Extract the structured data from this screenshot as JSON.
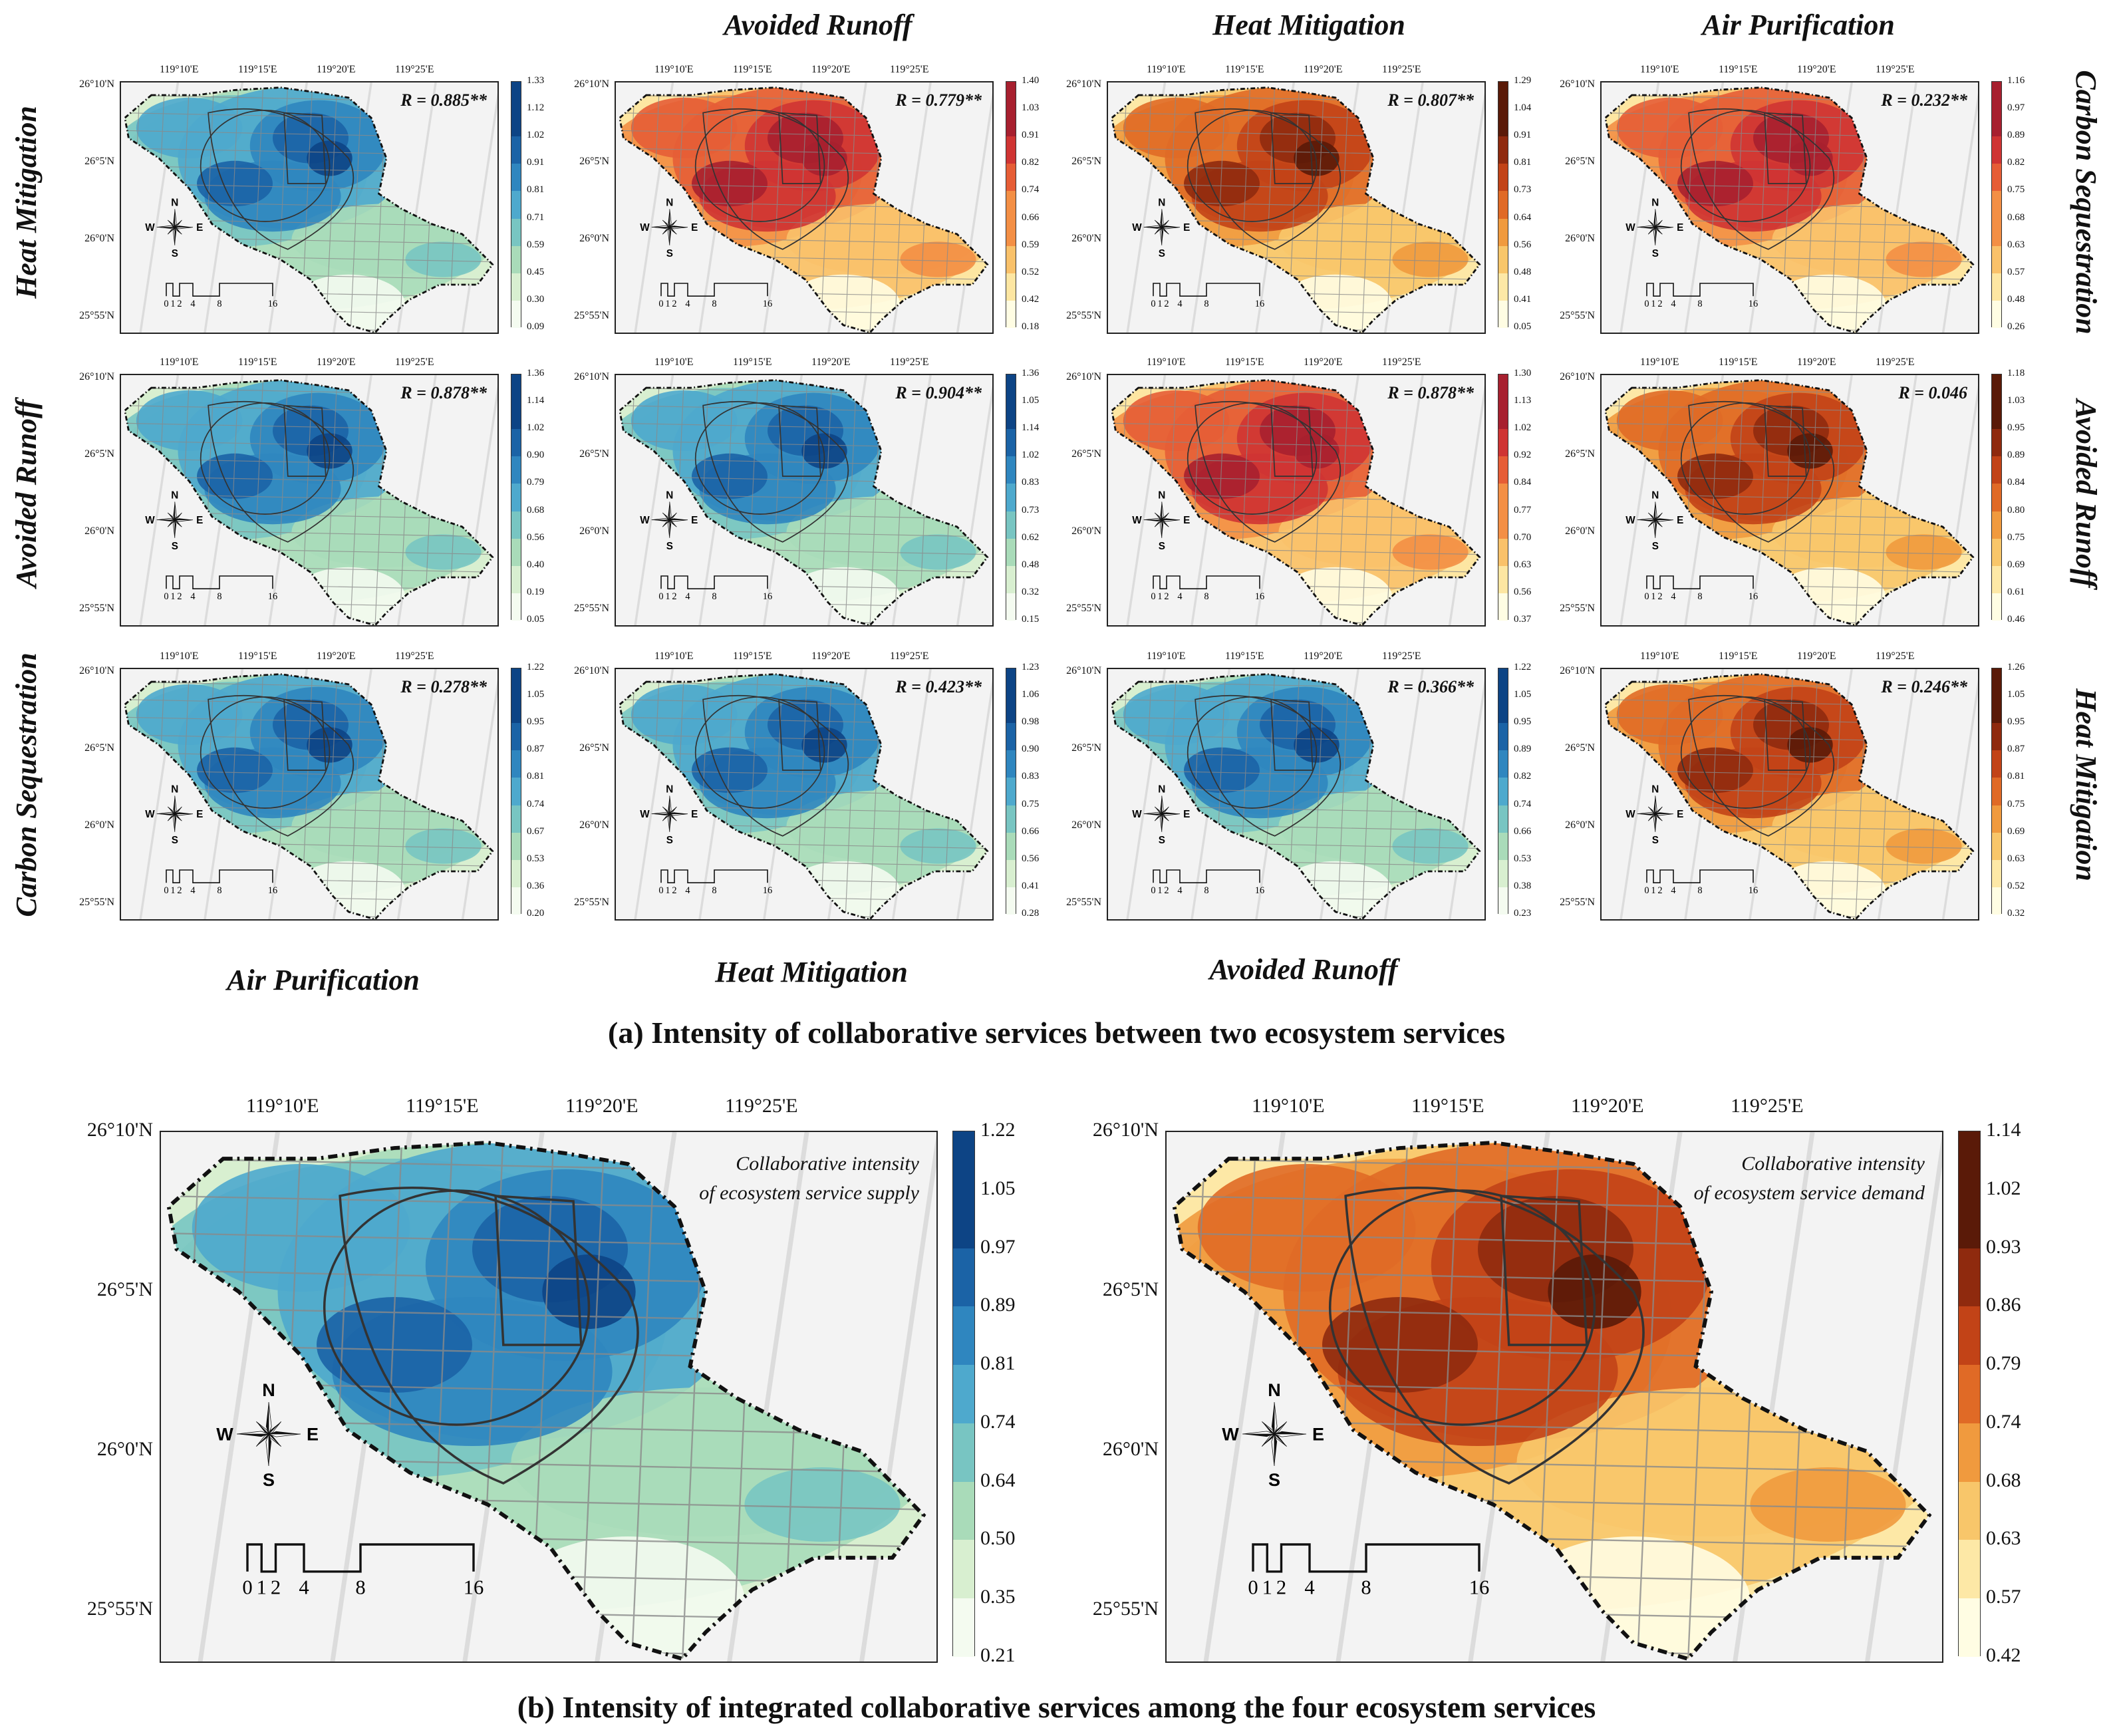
{
  "column_titles": [
    "Avoided Runoff",
    "Heat Mitigation",
    "Air Purification"
  ],
  "left_row_titles": [
    "Heat Mitigation",
    "Avoided Runoff",
    "Carbon Sequestration"
  ],
  "right_row_titles": [
    "Carbon Sequestration",
    "Avoided Runoff",
    "Heat Mitigation"
  ],
  "bottom_column_titles": [
    "Air Purification",
    "Heat Mitigation",
    "Avoided Runoff"
  ],
  "longitude_labels": [
    "119°10'E",
    "119°15'E",
    "119°20'E",
    "119°25'E"
  ],
  "latitude_labels": [
    "26°10'N",
    "26°5'N",
    "26°0'N",
    "25°55'N"
  ],
  "compass": {
    "n": "N",
    "s": "S",
    "e": "E",
    "w": "W"
  },
  "scale_labels": [
    "0",
    "1",
    "2",
    "4",
    "8",
    "16"
  ],
  "colors": {
    "blue_ramp": [
      "#f4fbf0",
      "#d8efd0",
      "#a9dbb9",
      "#78c5c2",
      "#4ea9cd",
      "#2f86bf",
      "#1b63a6",
      "#0d4485"
    ],
    "orange_ramp": [
      "#fffde3",
      "#fde8a6",
      "#f8c66a",
      "#f09a3e",
      "#e06a26",
      "#c24317",
      "#8f2a0e",
      "#5a1a08"
    ],
    "red_ramp": [
      "#fffde3",
      "#fde6a2",
      "#f9c16a",
      "#f38f45",
      "#e65d36",
      "#cf3433",
      "#a7202f"
    ]
  },
  "panels": [
    {
      "r": "R = 0.885**",
      "ramp": "blue",
      "ticks": [
        "1.33",
        "1.12",
        "1.02",
        "0.91",
        "0.81",
        "0.71",
        "0.59",
        "0.45",
        "0.30",
        "0.09"
      ]
    },
    {
      "r": "R = 0.779**",
      "ramp": "red",
      "ticks": [
        "1.40",
        "1.03",
        "0.91",
        "0.82",
        "0.74",
        "0.66",
        "0.59",
        "0.52",
        "0.42",
        "0.18"
      ]
    },
    {
      "r": "R = 0.807**",
      "ramp": "orange",
      "ticks": [
        "1.29",
        "1.04",
        "0.91",
        "0.81",
        "0.73",
        "0.64",
        "0.56",
        "0.48",
        "0.41",
        "0.05"
      ]
    },
    {
      "r": "R = 0.232**",
      "ramp": "red",
      "ticks": [
        "1.16",
        "0.97",
        "0.89",
        "0.82",
        "0.75",
        "0.68",
        "0.63",
        "0.57",
        "0.48",
        "0.26"
      ]
    },
    {
      "r": "R = 0.878**",
      "ramp": "blue",
      "ticks": [
        "1.36",
        "1.14",
        "1.02",
        "0.90",
        "0.79",
        "0.68",
        "0.56",
        "0.40",
        "0.19",
        "0.05"
      ]
    },
    {
      "r": "R = 0.904**",
      "ramp": "blue",
      "ticks": [
        "1.36",
        "1.05",
        "1.14",
        "1.02",
        "0.83",
        "0.73",
        "0.62",
        "0.48",
        "0.32",
        "0.15"
      ]
    },
    {
      "r": "R = 0.878**",
      "ramp": "red",
      "ticks": [
        "1.30",
        "1.13",
        "1.02",
        "0.92",
        "0.84",
        "0.77",
        "0.70",
        "0.63",
        "0.56",
        "0.37"
      ]
    },
    {
      "r": "R = 0.046",
      "ramp": "orange",
      "ticks": [
        "1.18",
        "1.03",
        "0.95",
        "0.89",
        "0.84",
        "0.80",
        "0.75",
        "0.69",
        "0.61",
        "0.46"
      ]
    },
    {
      "r": "R = 0.278**",
      "ramp": "blue",
      "ticks": [
        "1.22",
        "1.05",
        "0.95",
        "0.87",
        "0.81",
        "0.74",
        "0.67",
        "0.53",
        "0.36",
        "0.20"
      ]
    },
    {
      "r": "R = 0.423**",
      "ramp": "blue",
      "ticks": [
        "1.23",
        "1.06",
        "0.98",
        "0.90",
        "0.83",
        "0.75",
        "0.66",
        "0.56",
        "0.41",
        "0.28"
      ]
    },
    {
      "r": "R = 0.366**",
      "ramp": "blue",
      "ticks": [
        "1.22",
        "1.05",
        "0.95",
        "0.89",
        "0.82",
        "0.74",
        "0.66",
        "0.53",
        "0.38",
        "0.23"
      ]
    },
    {
      "r": "R = 0.246**",
      "ramp": "orange",
      "ticks": [
        "1.26",
        "1.05",
        "0.95",
        "0.87",
        "0.81",
        "0.75",
        "0.69",
        "0.63",
        "0.52",
        "0.32"
      ]
    }
  ],
  "caption_a": "(a) Intensity of collaborative services between two ecosystem services",
  "caption_b": "(b) Intensity of integrated collaborative services among the four ecosystem services",
  "big_maps": [
    {
      "note_line1": "Collaborative intensity",
      "note_line2": "of ecosystem service supply",
      "ramp": "blue",
      "ticks": [
        "1.22",
        "1.05",
        "0.97",
        "0.89",
        "0.81",
        "0.74",
        "0.64",
        "0.50",
        "0.35",
        "0.21"
      ]
    },
    {
      "note_line1": "Collaborative intensity",
      "note_line2": "of ecosystem service demand",
      "ramp": "orange",
      "ticks": [
        "1.14",
        "1.02",
        "0.93",
        "0.86",
        "0.79",
        "0.74",
        "0.68",
        "0.63",
        "0.57",
        "0.42"
      ]
    }
  ]
}
